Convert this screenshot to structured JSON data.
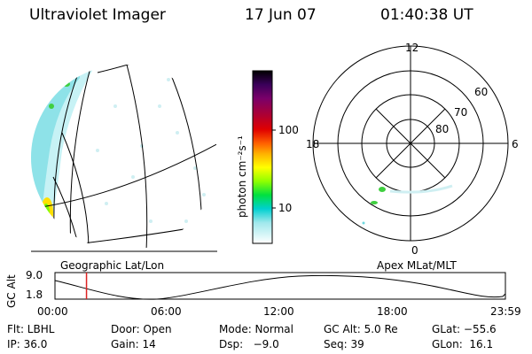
{
  "header": {
    "title": "Ultraviolet Imager",
    "date": "17 Jun 07",
    "time": "01:40:38 UT"
  },
  "colorbar": {
    "label": "photon cm⁻²s⁻¹",
    "scale": "log",
    "ticks": [
      "100",
      "10"
    ]
  },
  "polar_plot": {
    "mlt_labels": [
      "12",
      "18",
      "6",
      "0"
    ],
    "mlat_labels": [
      "60",
      "70",
      "80"
    ]
  },
  "left_panel_label": "Geographic Lat/Lon",
  "right_panel_label": "Apex MLat/MLT",
  "altitude_plot": {
    "ylabel": "GC Alt",
    "yticks": [
      "9.0",
      "1.8"
    ],
    "xticks": [
      "00:00",
      "06:00",
      "12:00",
      "18:00",
      "23:59"
    ],
    "marker_time_hours": 1.68
  },
  "info": {
    "flt": "Flt: LBHL",
    "door": "Door: Open",
    "mode": "Mode: Normal",
    "gc_alt": "GC Alt: 5.0 Re",
    "glat": "GLat: −55.6",
    "ip": "IP: 36.0",
    "gain": "Gain: 14",
    "dsp": "Dsp:   −9.0",
    "seq": "Seq: 39",
    "glon": "GLon:  16.1"
  },
  "colors": {
    "colorbar": [
      "#000000",
      "#3a005a",
      "#7a006a",
      "#b00030",
      "#e00000",
      "#ff6000",
      "#ffb000",
      "#ffff00",
      "#90ff00",
      "#00e040",
      "#00d0d0",
      "#00a0e0",
      "#ffffff"
    ],
    "marker": "#dd2222"
  }
}
